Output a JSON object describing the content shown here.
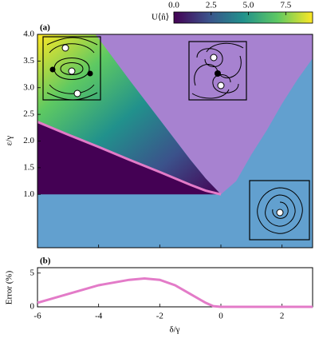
{
  "chart_data": [
    {
      "type": "phase",
      "panel_label": "(a)",
      "ylabel": "ε/γ",
      "xlim": [
        -6,
        3
      ],
      "ylim": [
        0,
        4
      ],
      "yticks": [
        {
          "value": 1,
          "label": "1.0"
        },
        {
          "value": 1.5,
          "label": "1.5"
        },
        {
          "value": 2,
          "label": "2.0"
        },
        {
          "value": 2.5,
          "label": "2.5"
        },
        {
          "value": 3,
          "label": "3.0"
        },
        {
          "value": 3.5,
          "label": "3.5"
        },
        {
          "value": 4,
          "label": "4.0"
        }
      ],
      "xticks": [
        -6,
        -4,
        -2,
        0,
        2
      ],
      "series": [
        {
          "color": "#e37bc8",
          "x": [
            -6,
            -5,
            -4,
            -3,
            -2,
            -1,
            -0.5,
            0
          ],
          "values": [
            2.36,
            2.12,
            1.89,
            1.65,
            1.42,
            1.18,
            1.07,
            1.0
          ]
        },
        {
          "color": "#a782d0",
          "x": [
            -4.1,
            -3,
            -2,
            -1,
            -0.5,
            0,
            0.5,
            1,
            1.5,
            2,
            2.5,
            3
          ],
          "values": [
            4.0,
            3.15,
            2.4,
            1.65,
            1.3,
            1.0,
            1.25,
            1.75,
            2.2,
            2.7,
            3.15,
            3.55
          ]
        }
      ],
      "background_color": "#62a0cf",
      "low_color": "#440154",
      "colorbar": {
        "label": "U⟨n̂⟩",
        "lim": [
          0,
          9.3
        ],
        "ticks": [
          {
            "value": 0,
            "label": "0.0"
          },
          {
            "value": 2.5,
            "label": "2.5"
          },
          {
            "value": 5,
            "label": "5.0"
          },
          {
            "value": 7.5,
            "label": "7.5"
          }
        ],
        "colors": [
          "#440154",
          "#3b528b",
          "#21918c",
          "#5ec962",
          "#fde725"
        ]
      }
    },
    {
      "type": "line",
      "panel_label": "(b)",
      "ylabel": "Error (%)",
      "xlabel": "δ/γ",
      "xlim": [
        -6,
        3
      ],
      "ylim": [
        0,
        5.8
      ],
      "yticks": [
        0,
        5
      ],
      "xticks": [
        -6,
        -4,
        -2,
        0,
        2
      ],
      "series": [
        {
          "color": "#e37bc8",
          "x": [
            -6,
            -5,
            -4,
            -3,
            -2.5,
            -2,
            -1.5,
            -1,
            -0.5,
            -0.25,
            0,
            1,
            2,
            3
          ],
          "values": [
            0.6,
            1.9,
            3.2,
            4.0,
            4.2,
            4.0,
            3.2,
            1.9,
            0.6,
            0.1,
            0,
            0,
            0,
            0
          ]
        }
      ]
    }
  ]
}
